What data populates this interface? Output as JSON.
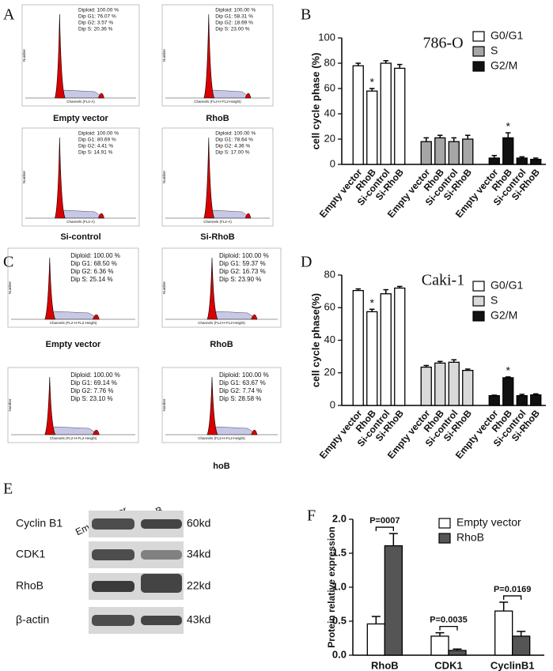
{
  "letters": [
    "A",
    "B",
    "C",
    "D",
    "E",
    "F"
  ],
  "flow_panels": [
    {
      "plots": [
        {
          "stats": [
            "Diploid: 100.00 %",
            "Dip G1: 76.07 %",
            "Dip G2: 3.57 %",
            "Dip S: 20.36 %"
          ],
          "label": "Empty vector",
          "x_label": "Channels (FL2-A)",
          "y_label": "Number"
        },
        {
          "stats": [
            "Diploid: 100.00 %",
            "Dip G1: 58.31 %",
            "Dip G2: 18.69 %",
            "Dip S: 23.00 %"
          ],
          "label": "RhoB",
          "x_label": "Channels (FL2-H-FL2-Height)",
          "y_label": "Number"
        },
        {
          "stats": [
            "Diploid: 100.00 %",
            "Dip G1: 80.69 %",
            "Dip G2: 4.41 %",
            "Dip S: 14.91 %"
          ],
          "label": "Si-control",
          "x_label": "Channels (FL2-A)",
          "y_label": "Number"
        },
        {
          "stats": [
            "Diploid: 100.00 %",
            "Dip G1: 78.64 %",
            "Dip G2: 4.36 %",
            "Dip S: 17.00 %"
          ],
          "label": "Si-RhoB",
          "x_label": "Channels (FL2-A)",
          "y_label": "Number"
        }
      ]
    },
    {
      "plots": [
        {
          "stats": [
            "Diploid: 100.00 %",
            "Dip G1: 68.50 %",
            "Dip G2: 6.36 %",
            "Dip S: 25.14 %"
          ],
          "label": "Empty vector",
          "x_label": "Channels (FL2-H-FL2-Height)",
          "y_label": "Number"
        },
        {
          "stats": [
            "Diploid: 100.00 %",
            "Dip G1: 59.37 %",
            "Dip G2: 16.73 %",
            "Dip S: 23.90 %"
          ],
          "label": "RhoB",
          "x_label": "Channels (FL2-H-FL2-Height)",
          "y_label": "Number"
        },
        {
          "stats": [
            "Diploid: 100.00 %",
            "Dip G1: 69.14 %",
            "Dip G2: 7.76 %",
            "Dip S: 23.10 %"
          ],
          "x_label": "Channels (FL2-H-FL2-Height)",
          "y_label": "Number"
        },
        {
          "stats": [
            "Diploid: 100.00 %",
            "Dip G1: 63.67 %",
            "Dip G2: 7.74 %",
            "Dip S: 28.58 %"
          ],
          "label": "hoB",
          "x_label": "Channels (FL2-H-FL2-Height)",
          "y_label": "Number"
        }
      ]
    }
  ],
  "blot": {
    "lanes": [
      "Empty vector",
      "RhoB"
    ],
    "rows": [
      {
        "protein": "Cyclin B1",
        "size": "60kd"
      },
      {
        "protein": "CDK1",
        "size": "34kd"
      },
      {
        "protein": "RhoB",
        "size": "22kd"
      },
      {
        "protein": "β-actin",
        "size": "43kd"
      }
    ]
  },
  "chart_data": [
    {
      "type": "bar",
      "title": "786-O",
      "y_label": "cell cycle phase (%)",
      "categories": [
        "Empty vector",
        "RhoB",
        "Si-control",
        "Si-RhoB"
      ],
      "series": [
        {
          "name": "G0/G1",
          "color": "#ffffff",
          "values": [
            78,
            58,
            80,
            76
          ],
          "errors": [
            2,
            2,
            2,
            3
          ]
        },
        {
          "name": "S",
          "color": "#a6a6a6",
          "values": [
            18,
            21,
            18,
            20
          ],
          "errors": [
            3,
            2,
            3,
            3
          ]
        },
        {
          "name": "G2/M",
          "color": "#111111",
          "values": [
            5,
            21,
            5,
            4
          ],
          "errors": [
            2,
            4,
            1,
            1
          ]
        }
      ],
      "annotations": [
        {
          "text": "*",
          "series": 0,
          "index": 1
        },
        {
          "text": "*",
          "series": 2,
          "index": 1
        }
      ],
      "ylim": [
        0,
        100
      ],
      "yticks": [
        0,
        20,
        40,
        60,
        80,
        100
      ],
      "legend": "upper right"
    },
    {
      "type": "bar",
      "title": "Caki-1",
      "y_label": "cell cycle phase(%)",
      "categories": [
        "Empty vector",
        "RhoB",
        "Si-control",
        "Si-RhoB"
      ],
      "series": [
        {
          "name": "G0/G1",
          "color": "#ffffff",
          "values": [
            70.5,
            57.5,
            68.5,
            72
          ],
          "errors": [
            1,
            1.5,
            2.5,
            1
          ]
        },
        {
          "name": "S",
          "color": "#d9d9d9",
          "values": [
            23.5,
            26,
            26.5,
            21.5
          ],
          "errors": [
            1,
            1,
            1.5,
            0.8
          ]
        },
        {
          "name": "G2/M",
          "color": "#111111",
          "values": [
            6,
            17,
            6,
            6.5
          ],
          "errors": [
            0.3,
            0.5,
            0.8,
            0.6
          ]
        }
      ],
      "annotations": [
        {
          "text": "*",
          "series": 0,
          "index": 1
        },
        {
          "text": "*",
          "series": 2,
          "index": 1
        }
      ],
      "ylim": [
        0,
        80
      ],
      "yticks": [
        0,
        20,
        40,
        60,
        80
      ],
      "legend": "upper right"
    },
    {
      "type": "bar",
      "y_label": "Protein relative expression",
      "categories": [
        "RhoB",
        "CDK1",
        "CyclinB1"
      ],
      "series": [
        {
          "name": "Empty vector",
          "color": "#ffffff",
          "values": [
            0.46,
            0.28,
            0.65
          ],
          "errors": [
            0.11,
            0.05,
            0.13
          ]
        },
        {
          "name": "RhoB",
          "color": "#555555",
          "values": [
            1.61,
            0.07,
            0.28
          ],
          "errors": [
            0.18,
            0.02,
            0.07
          ]
        }
      ],
      "annotations": [
        {
          "text": "P=0007",
          "index": 0
        },
        {
          "text": "P=0.0035",
          "index": 1
        },
        {
          "text": "P=0.0169",
          "index": 2
        }
      ],
      "ylim": [
        0,
        2
      ],
      "yticks": [
        {
          "value": 0,
          "label": "0.0"
        },
        0.5,
        {
          "value": 1,
          "label": "1.0"
        },
        1.5,
        {
          "value": 2,
          "label": "2.0"
        }
      ],
      "legend": "upper right"
    }
  ]
}
